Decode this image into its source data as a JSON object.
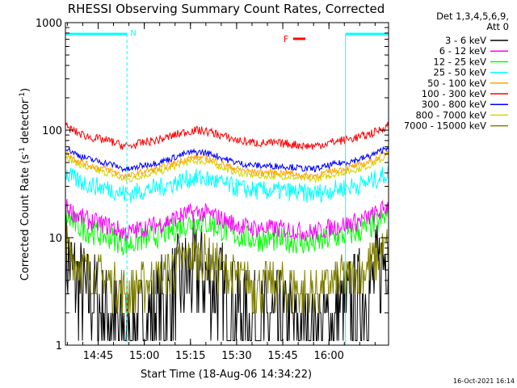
{
  "chart_data": {
    "type": "line",
    "title": "RHESSI Observing Summary Count Rates, Corrected",
    "xlabel": "Start Time (18-Aug-06 14:34:22)",
    "ylabel": "Corrected Count Rate (s⁻¹ detector⁻¹)",
    "ylabel_parts": {
      "main": "Corrected Count Rate (s",
      "sup1": "-1",
      "mid": " detector",
      "sup2": "-1",
      "end": ")"
    },
    "yscale": "log",
    "ylim": [
      1,
      1000
    ],
    "xlim_minutes": [
      0,
      105
    ],
    "x_ticks": [
      {
        "label": "14:45",
        "minute": 10.63
      },
      {
        "label": "15:00",
        "minute": 25.63
      },
      {
        "label": "15:15",
        "minute": 40.63
      },
      {
        "label": "15:30",
        "minute": 55.63
      },
      {
        "label": "15:45",
        "minute": 70.63
      },
      {
        "label": "16:00",
        "minute": 85.63
      }
    ],
    "y_ticks": [
      {
        "label": "1",
        "value": 1
      },
      {
        "label": "10",
        "value": 10
      },
      {
        "label": "100",
        "value": 100
      },
      {
        "label": "1000",
        "value": 1000
      }
    ],
    "legend_header": [
      "Det 1,3,4,5,6,9,",
      "Att 0"
    ],
    "series": [
      {
        "name": "3 - 6 keV",
        "color": "#000000",
        "base": 1.5,
        "amp": 0.9,
        "noise": 0.5,
        "step": 1,
        "floor": 1.1
      },
      {
        "name": "6 - 12 keV",
        "color": "#ff00ff",
        "base": 12,
        "amp": 0.28,
        "noise": 0.09,
        "floor": 0
      },
      {
        "name": "12 - 25 keV",
        "color": "#00ff00",
        "base": 9.5,
        "amp": 0.3,
        "noise": 0.12,
        "floor": 0
      },
      {
        "name": "25 - 50 keV",
        "color": "#00ffff",
        "base": 27,
        "amp": 0.22,
        "noise": 0.09,
        "floor": 0
      },
      {
        "name": "50 - 100 keV",
        "color": "#ffa500",
        "base": 40,
        "amp": 0.26,
        "noise": 0.03,
        "floor": 0
      },
      {
        "name": "100 - 300 keV",
        "color": "#ff0000",
        "base": 75,
        "amp": 0.22,
        "noise": 0.04,
        "floor": 0
      },
      {
        "name": "300 - 800 keV",
        "color": "#0000ff",
        "base": 46,
        "amp": 0.24,
        "noise": 0.03,
        "floor": 0
      },
      {
        "name": "800 - 7000 keV",
        "color": "#d4d400",
        "base": 37,
        "amp": 0.26,
        "noise": 0.03,
        "floor": 0
      },
      {
        "name": "7000 - 15000 keV",
        "color": "#808000",
        "base": 3.5,
        "amp": 0.5,
        "noise": 0.22,
        "step": 1,
        "floor": 1.1
      }
    ],
    "attenuator_lines": [
      {
        "minute": 0,
        "style": "solid"
      },
      {
        "minute": 20,
        "style": "dashed"
      },
      {
        "minute": 91,
        "style": "solid"
      },
      {
        "minute": 105,
        "style": "dashed"
      }
    ],
    "annotations": {
      "night_label": "N",
      "flare_label": "F",
      "flare_bar_minutes": [
        74,
        78
      ]
    },
    "grid": false
  },
  "footer": {
    "timestamp": "16-Oct-2021 16:14"
  },
  "colors": {
    "background": "#ffffff",
    "axes": "#000000",
    "marker_line": "#00ffff"
  }
}
